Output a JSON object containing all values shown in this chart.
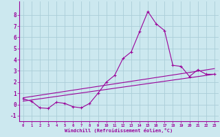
{
  "xlabel": "Windchill (Refroidissement éolien,°C)",
  "bg_color": "#cce8ef",
  "grid_color": "#aacdd8",
  "line_color": "#990099",
  "line_color2": "#aa00aa",
  "x_hours": [
    0,
    1,
    2,
    3,
    4,
    5,
    6,
    7,
    8,
    9,
    10,
    11,
    12,
    13,
    14,
    15,
    16,
    17,
    18,
    19,
    20,
    21,
    22,
    23
  ],
  "windchill": [
    0.5,
    0.3,
    -0.3,
    -0.35,
    0.2,
    0.1,
    -0.2,
    -0.3,
    0.1,
    1.0,
    2.0,
    2.6,
    4.1,
    4.7,
    6.5,
    8.3,
    7.2,
    6.6,
    3.5,
    3.4,
    2.5,
    3.1,
    2.7,
    2.7
  ],
  "trend1_x": [
    0,
    23
  ],
  "trend1_y": [
    0.6,
    3.2
  ],
  "trend2_x": [
    0,
    23
  ],
  "trend2_y": [
    0.3,
    2.7
  ],
  "ylim": [
    -1.5,
    9.2
  ],
  "xlim": [
    -0.5,
    23.5
  ],
  "yticks": [
    -1,
    0,
    1,
    2,
    3,
    4,
    5,
    6,
    7,
    8
  ],
  "xticks": [
    0,
    1,
    2,
    3,
    4,
    5,
    6,
    7,
    8,
    9,
    10,
    11,
    12,
    13,
    14,
    15,
    16,
    17,
    18,
    19,
    20,
    21,
    22,
    23
  ]
}
